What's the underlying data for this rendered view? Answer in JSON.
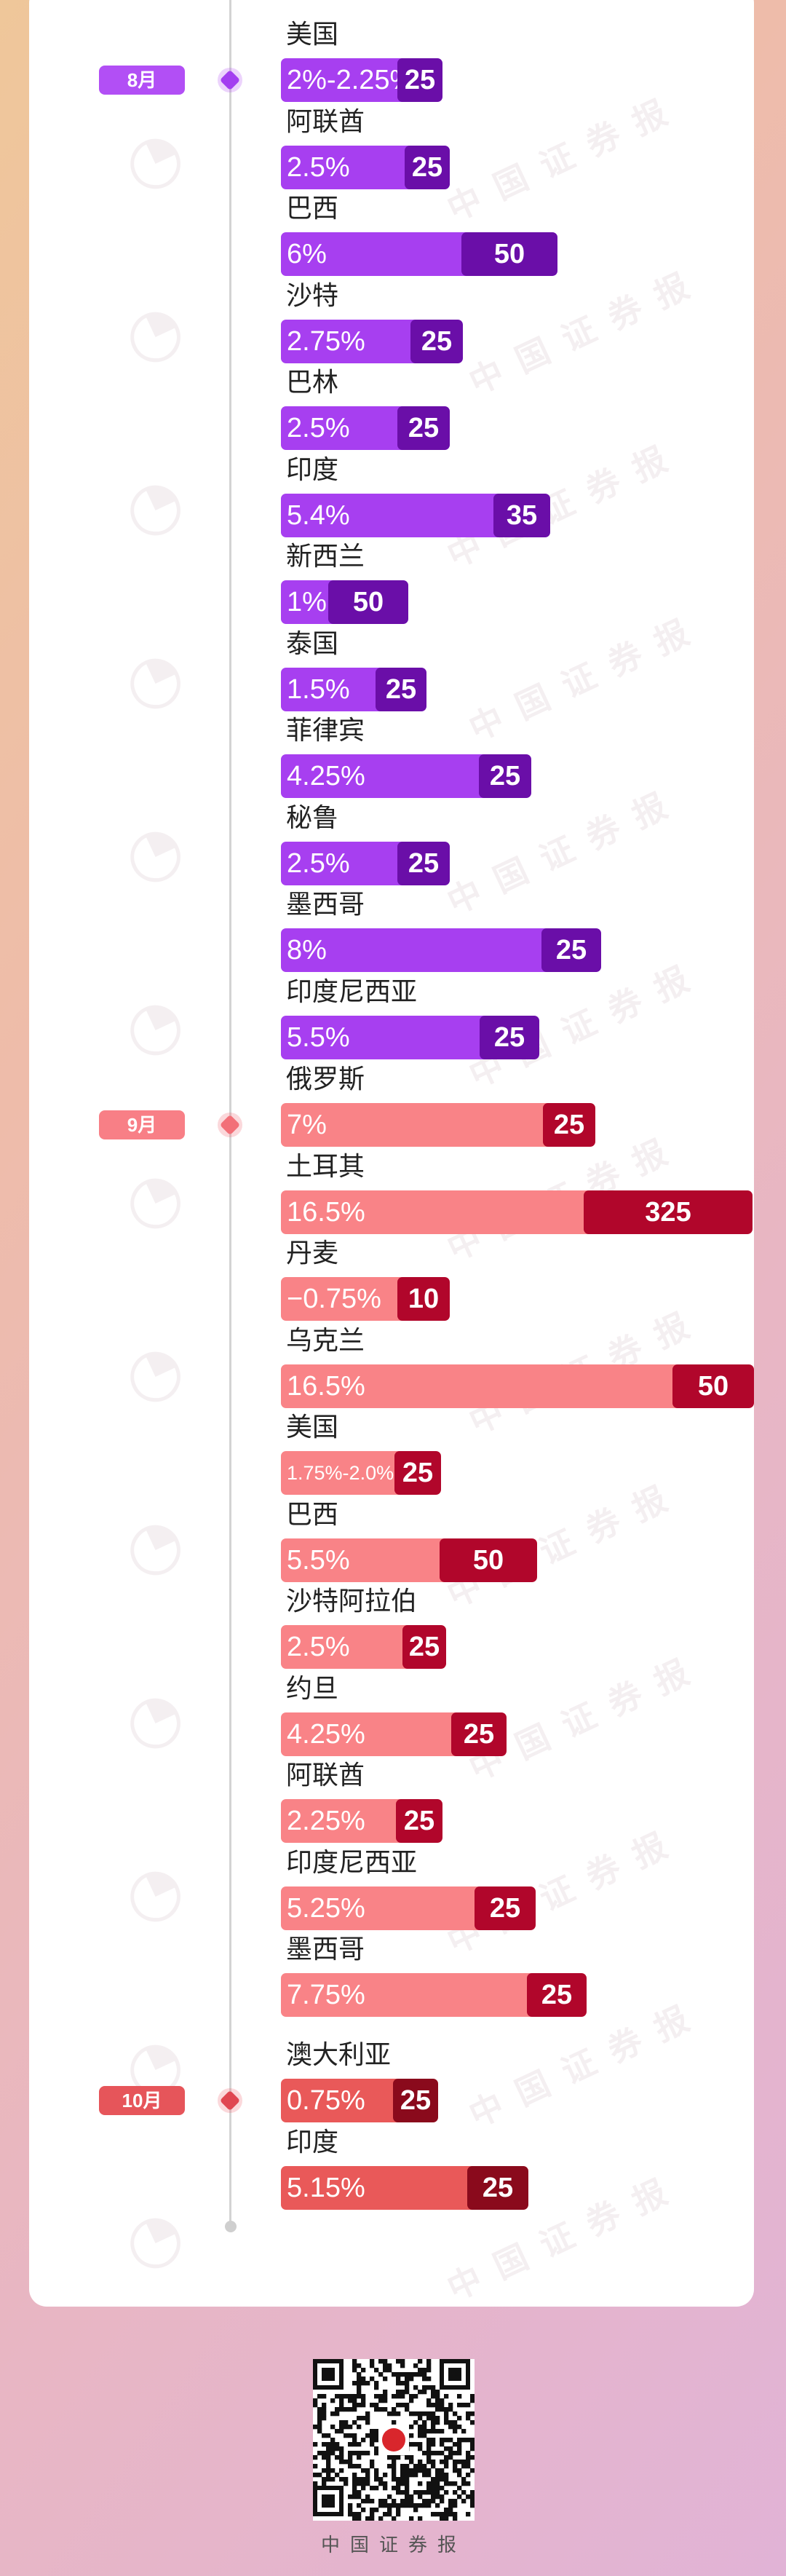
{
  "colors": {
    "aug_base": "#a73ff0",
    "aug_hike": "#6a0ea8",
    "sep_base": "#f98387",
    "sep_hike": "#b1062b",
    "oct_base": "#e95959",
    "oct_hike": "#8a0a1c"
  },
  "watermark_text": "中国证券报",
  "footer": {
    "caption": "中国证券报"
  },
  "chart_data": {
    "type": "bar",
    "groups": [
      {
        "month": "8月",
        "rows": [
          {
            "country": "美国",
            "rate": "2%-2.25%",
            "hike": 25
          },
          {
            "country": "阿联酋",
            "rate": "2.5%",
            "hike": 25
          },
          {
            "country": "巴西",
            "rate": "6%",
            "hike": 50
          },
          {
            "country": "沙特",
            "rate": "2.75%",
            "hike": 25
          },
          {
            "country": "巴林",
            "rate": "2.5%",
            "hike": 25
          },
          {
            "country": "印度",
            "rate": "5.4%",
            "hike": 35
          },
          {
            "country": "新西兰",
            "rate": "1%",
            "hike": 50
          },
          {
            "country": "泰国",
            "rate": "1.5%",
            "hike": 25
          },
          {
            "country": "菲律宾",
            "rate": "4.25%",
            "hike": 25
          },
          {
            "country": "秘鲁",
            "rate": "2.5%",
            "hike": 25
          },
          {
            "country": "墨西哥",
            "rate": "8%",
            "hike": 25
          },
          {
            "country": "印度尼西亚",
            "rate": "5.5%",
            "hike": 25
          }
        ]
      },
      {
        "month": "9月",
        "rows": [
          {
            "country": "俄罗斯",
            "rate": "7%",
            "hike": 25
          },
          {
            "country": "土耳其",
            "rate": "16.5%",
            "hike": 325
          },
          {
            "country": "丹麦",
            "rate": "−0.75%",
            "hike": 10
          },
          {
            "country": "乌克兰",
            "rate": "16.5%",
            "hike": 50
          },
          {
            "country": "美国",
            "rate": "1.75%-2.0%",
            "hike": 25
          },
          {
            "country": "巴西",
            "rate": "5.5%",
            "hike": 50
          },
          {
            "country": "沙特阿拉伯",
            "rate": "2.5%",
            "hike": 25
          },
          {
            "country": "约旦",
            "rate": "4.25%",
            "hike": 25
          },
          {
            "country": "阿联酋",
            "rate": "2.25%",
            "hike": 25
          },
          {
            "country": "印度尼西亚",
            "rate": "5.25%",
            "hike": 25
          },
          {
            "country": "墨西哥",
            "rate": "7.75%",
            "hike": 25
          }
        ]
      },
      {
        "month": "10月",
        "rows": [
          {
            "country": "澳大利亚",
            "rate": "0.75%",
            "hike": 25
          },
          {
            "country": "印度",
            "rate": "5.15%",
            "hike": 25
          }
        ]
      }
    ]
  }
}
